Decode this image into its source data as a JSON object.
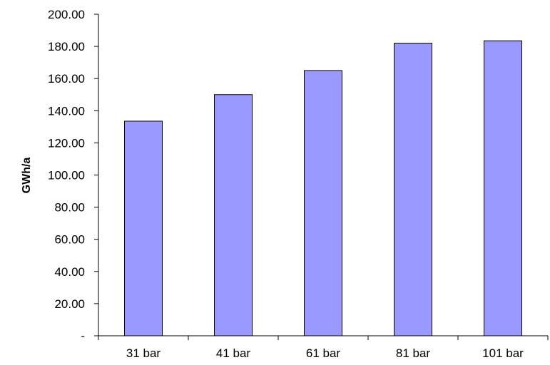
{
  "chart_data": {
    "type": "bar",
    "categories": [
      "31 bar",
      "41 bar",
      "61 bar",
      "81 bar",
      "101 bar"
    ],
    "values": [
      133.5,
      150.0,
      165.0,
      182.0,
      183.5
    ],
    "ylabel": "GWh/a",
    "ylim": [
      0,
      200
    ],
    "y_ticks": [
      0,
      20,
      40,
      60,
      80,
      100,
      120,
      140,
      160,
      180,
      200
    ],
    "y_tick_labels": [
      "-",
      "20.00",
      "40.00",
      "60.00",
      "80.00",
      "100.00",
      "120.00",
      "140.00",
      "160.00",
      "180.00",
      "200.00"
    ],
    "grid": false,
    "legend": "none",
    "bar_color": "#9999ff",
    "bar_edge_color": "#000000"
  }
}
